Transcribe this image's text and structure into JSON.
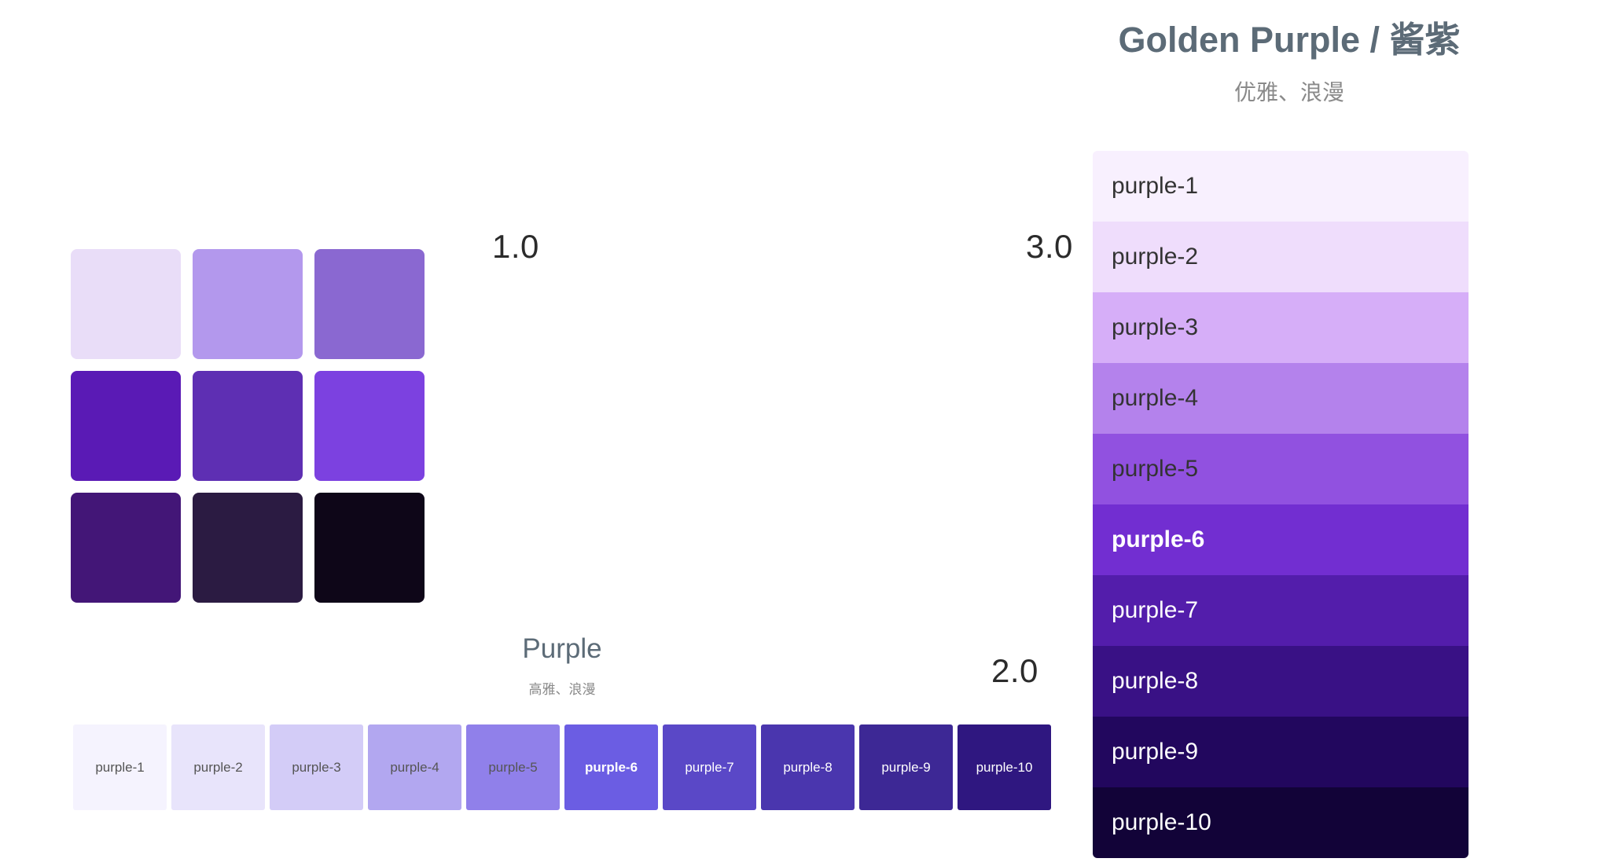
{
  "versions": {
    "v1": "1.0",
    "v2": "2.0",
    "v3": "3.0"
  },
  "v1_grid": {
    "colors": [
      "#E9DDF8",
      "#B398ED",
      "#8A68D1",
      "#5A1AB5",
      "#5E2FB3",
      "#7C41E0",
      "#431677",
      "#2B1B42",
      "#0E0618"
    ]
  },
  "v2_palette": {
    "title": "Purple",
    "subtitle": "高雅、浪漫",
    "swatches": [
      {
        "label": "purple-1",
        "color": "#F5F3FE",
        "text": "#555555",
        "bold": false
      },
      {
        "label": "purple-2",
        "color": "#E8E4FB",
        "text": "#555555",
        "bold": false
      },
      {
        "label": "purple-3",
        "color": "#D3CCF7",
        "text": "#555555",
        "bold": false
      },
      {
        "label": "purple-4",
        "color": "#B2A7F0",
        "text": "#555555",
        "bold": false
      },
      {
        "label": "purple-5",
        "color": "#9080EA",
        "text": "#555555",
        "bold": false
      },
      {
        "label": "purple-6",
        "color": "#6B5DE3",
        "text": "#ffffff",
        "bold": true
      },
      {
        "label": "purple-7",
        "color": "#5A48C7",
        "text": "#ffffff",
        "bold": false
      },
      {
        "label": "purple-8",
        "color": "#4A36AE",
        "text": "#ffffff",
        "bold": false
      },
      {
        "label": "purple-9",
        "color": "#3D2895",
        "text": "#ffffff",
        "bold": false
      },
      {
        "label": "purple-10",
        "color": "#2F1780",
        "text": "#ffffff",
        "bold": false
      }
    ]
  },
  "v3_palette": {
    "title": "Golden Purple / 酱紫",
    "subtitle": "优雅、浪漫",
    "rows": [
      {
        "label": "purple-1",
        "color": "#F8F0FE",
        "text": "#333333",
        "bold": false
      },
      {
        "label": "purple-2",
        "color": "#EFDDFC",
        "text": "#333333",
        "bold": false
      },
      {
        "label": "purple-3",
        "color": "#D6AEF8",
        "text": "#333333",
        "bold": false
      },
      {
        "label": "purple-4",
        "color": "#B482EC",
        "text": "#333333",
        "bold": false
      },
      {
        "label": "purple-5",
        "color": "#9151E0",
        "text": "#333333",
        "bold": false
      },
      {
        "label": "purple-6",
        "color": "#722ED1",
        "text": "#ffffff",
        "bold": true
      },
      {
        "label": "purple-7",
        "color": "#531DAB",
        "text": "#ffffff",
        "bold": false
      },
      {
        "label": "purple-8",
        "color": "#391185",
        "text": "#ffffff",
        "bold": false
      },
      {
        "label": "purple-9",
        "color": "#22075E",
        "text": "#ffffff",
        "bold": false
      },
      {
        "label": "purple-10",
        "color": "#120338",
        "text": "#ffffff",
        "bold": false
      }
    ]
  }
}
